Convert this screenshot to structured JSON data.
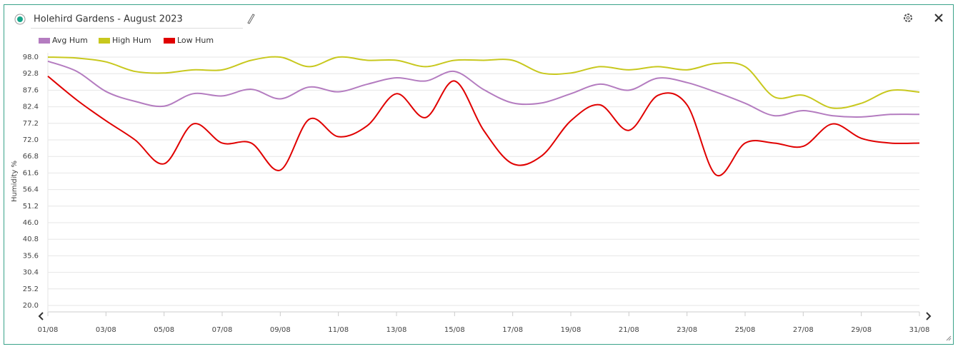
{
  "chart_data": {
    "type": "line",
    "title": "Holehird Gardens - August 2023",
    "y_label": "Humidity %",
    "categories": [
      "01/08",
      null,
      "03/08",
      null,
      "05/08",
      null,
      "07/08",
      null,
      "09/08",
      null,
      "11/08",
      null,
      "13/08",
      null,
      "15/08",
      null,
      "17/08",
      null,
      "19/08",
      null,
      "21/08",
      null,
      "23/08",
      null,
      "25/08",
      null,
      "27/08",
      null,
      "29/08",
      null,
      "31/08"
    ],
    "series": [
      {
        "name": "Avg Hum",
        "color": "#b47cc0",
        "values": [
          96.7,
          93.5,
          87.2,
          84.1,
          82.6,
          86.5,
          85.8,
          87.9,
          84.9,
          88.6,
          87.1,
          89.5,
          91.5,
          90.5,
          93.5,
          87.8,
          83.6,
          83.6,
          86.5,
          89.5,
          87.6,
          91.4,
          90.0,
          87.0,
          83.5,
          79.6,
          81.2,
          79.6,
          79.2,
          80.0,
          80.0
        ]
      },
      {
        "name": "High Hum",
        "color": "#c8c81e",
        "values": [
          98.0,
          97.7,
          96.5,
          93.5,
          93.0,
          94.0,
          94.0,
          97.0,
          98.0,
          95.0,
          98.0,
          97.0,
          97.0,
          95.0,
          97.0,
          97.0,
          97.0,
          93.0,
          93.0,
          95.0,
          94.0,
          95.0,
          94.0,
          96.0,
          95.0,
          85.5,
          86.0,
          82.0,
          83.5,
          87.5,
          87.0
        ]
      },
      {
        "name": "Low Hum",
        "color": "#e00000",
        "values": [
          92.0,
          84.5,
          78.0,
          72.0,
          64.5,
          77.0,
          71.0,
          71.0,
          62.5,
          78.5,
          73.0,
          76.5,
          86.5,
          79.0,
          90.5,
          75.0,
          64.5,
          67.0,
          78.0,
          83.0,
          75.0,
          86.0,
          83.0,
          61.0,
          71.0,
          71.0,
          70.0,
          77.0,
          72.5,
          71.0,
          71.0
        ]
      }
    ],
    "ylim": [
      20,
      98
    ],
    "yticks": [
      {
        "value": 20,
        "label": "20.0"
      },
      {
        "value": 25.2,
        "label": "25.2"
      },
      {
        "value": 30.4,
        "label": "30.4"
      },
      {
        "value": 35.6,
        "label": "35.6"
      },
      {
        "value": 40.8,
        "label": "40.8"
      },
      {
        "value": 46,
        "label": "46.0"
      },
      {
        "value": 51.2,
        "label": "51.2"
      },
      {
        "value": 56.4,
        "label": "56.4"
      },
      {
        "value": 61.6,
        "label": "61.6"
      },
      {
        "value": 66.8,
        "label": "66.8"
      },
      {
        "value": 72,
        "label": "72.0"
      },
      {
        "value": 77.2,
        "label": "77.2"
      },
      {
        "value": 82.4,
        "label": "82.4"
      },
      {
        "value": 87.6,
        "label": "87.6"
      },
      {
        "value": 92.8,
        "label": "92.8"
      },
      {
        "value": 98,
        "label": "98.0"
      }
    ],
    "grid": true
  }
}
